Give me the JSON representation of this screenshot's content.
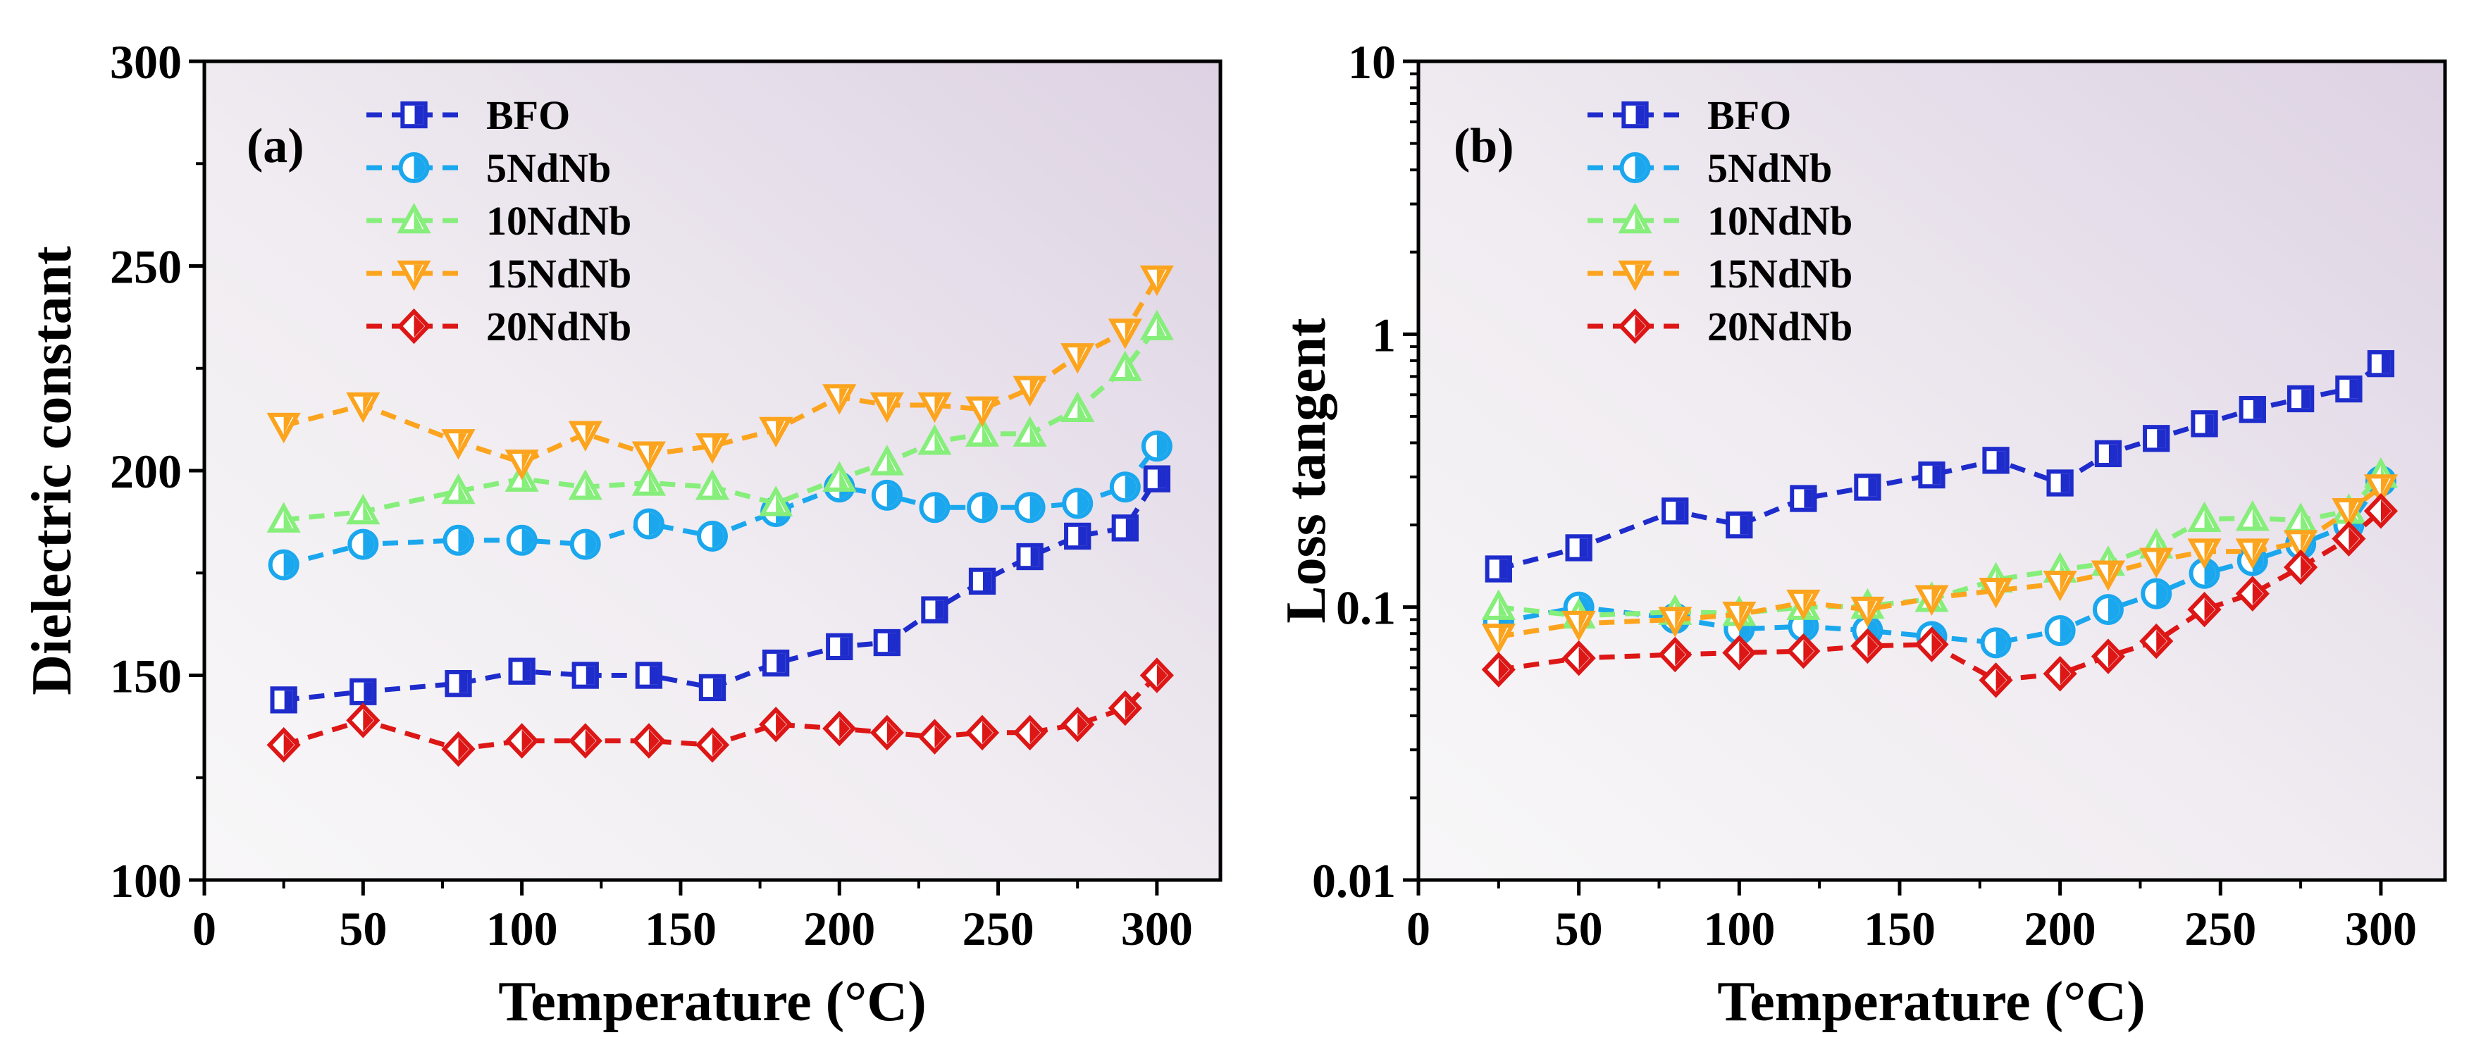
{
  "chart_data": [
    {
      "type": "line",
      "panel_label": "(a)",
      "xlabel": "Temperature (°C)",
      "ylabel": "Dielectric constant",
      "xlim": [
        0,
        320
      ],
      "ylim": [
        100,
        300
      ],
      "yscale": "linear",
      "xticks": [
        0,
        50,
        100,
        150,
        200,
        250,
        300
      ],
      "xtick_labels": [
        "0",
        "50",
        "100",
        "150",
        "200",
        "250",
        "300"
      ],
      "yticks": [
        100,
        150,
        200,
        250,
        300
      ],
      "ytick_labels": [
        "100",
        "150",
        "200",
        "250",
        "300"
      ],
      "legend_position": "top-left",
      "x": [
        25,
        50,
        80,
        100,
        120,
        140,
        160,
        180,
        200,
        215,
        230,
        245,
        260,
        275,
        290,
        300
      ],
      "series": [
        {
          "name": "BFO",
          "color": "#1f2ccc",
          "marker": "square",
          "values": [
            144,
            146,
            148,
            151,
            150,
            150,
            147,
            153,
            157,
            158,
            166,
            173,
            179,
            184,
            186,
            198
          ]
        },
        {
          "name": "5NdNb",
          "color": "#1aa7ee",
          "marker": "circle",
          "values": [
            177,
            182,
            183,
            183,
            182,
            187,
            184,
            190,
            196,
            194,
            191,
            191,
            191,
            192,
            196,
            206
          ]
        },
        {
          "name": "10NdNb",
          "color": "#86ee7a",
          "marker": "triangle-up",
          "values": [
            188,
            190,
            195,
            198,
            196,
            197,
            196,
            192,
            198,
            202,
            207,
            209,
            209,
            215,
            225,
            235
          ]
        },
        {
          "name": "15NdNb",
          "color": "#fca41e",
          "marker": "triangle-down",
          "values": [
            211,
            216,
            207,
            202,
            209,
            204,
            206,
            210,
            218,
            216,
            216,
            215,
            220,
            228,
            234,
            247
          ]
        },
        {
          "name": "20NdNb",
          "color": "#dd1616",
          "marker": "diamond",
          "values": [
            133,
            139,
            132,
            134,
            134,
            134,
            133,
            138,
            137,
            136,
            135,
            136,
            136,
            138,
            142,
            150
          ]
        }
      ]
    },
    {
      "type": "line",
      "panel_label": "(b)",
      "xlabel": "Temperature (°C)",
      "ylabel": "Loss tangent",
      "xlim": [
        0,
        320
      ],
      "ylim": [
        0.01,
        10
      ],
      "yscale": "log",
      "xticks": [
        0,
        50,
        100,
        150,
        200,
        250,
        300
      ],
      "xtick_labels": [
        "0",
        "50",
        "100",
        "150",
        "200",
        "250",
        "300"
      ],
      "yticks": [
        0.01,
        0.1,
        1,
        10
      ],
      "ytick_labels": [
        "0.01",
        "0.1",
        "1",
        "10"
      ],
      "legend_position": "top-left",
      "x": [
        25,
        50,
        80,
        100,
        120,
        140,
        160,
        180,
        200,
        215,
        230,
        245,
        260,
        275,
        290,
        300
      ],
      "series": [
        {
          "name": "BFO",
          "color": "#1f2ccc",
          "marker": "square",
          "values": [
            0.138,
            0.165,
            0.225,
            0.2,
            0.25,
            0.275,
            0.305,
            0.345,
            0.285,
            0.365,
            0.415,
            0.47,
            0.53,
            0.58,
            0.63,
            0.78
          ]
        },
        {
          "name": "5NdNb",
          "color": "#1aa7ee",
          "marker": "circle",
          "values": [
            0.088,
            0.1,
            0.091,
            0.083,
            0.085,
            0.082,
            0.078,
            0.074,
            0.082,
            0.098,
            0.112,
            0.133,
            0.148,
            0.17,
            0.2,
            0.29
          ]
        },
        {
          "name": "10NdNb",
          "color": "#86ee7a",
          "marker": "triangle-up",
          "values": [
            0.1,
            0.093,
            0.096,
            0.095,
            0.1,
            0.101,
            0.107,
            0.126,
            0.137,
            0.145,
            0.168,
            0.21,
            0.212,
            0.208,
            0.225,
            0.305
          ]
        },
        {
          "name": "15NdNb",
          "color": "#fca41e",
          "marker": "triangle-down",
          "values": [
            0.078,
            0.087,
            0.09,
            0.094,
            0.104,
            0.098,
            0.108,
            0.115,
            0.122,
            0.133,
            0.148,
            0.16,
            0.16,
            0.172,
            0.225,
            0.275
          ]
        },
        {
          "name": "20NdNb",
          "color": "#dd1616",
          "marker": "diamond",
          "values": [
            0.059,
            0.065,
            0.067,
            0.068,
            0.069,
            0.072,
            0.073,
            0.054,
            0.057,
            0.066,
            0.075,
            0.098,
            0.112,
            0.14,
            0.178,
            0.225
          ]
        }
      ]
    }
  ]
}
